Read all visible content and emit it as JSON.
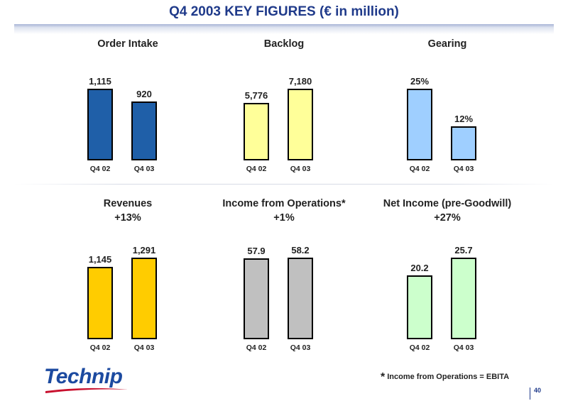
{
  "title": "Q4 2003 KEY FIGURES (€ in million)",
  "footnote": {
    "star": "*",
    "text": "Income from Operations = EBITA"
  },
  "logo_text": "Technip",
  "page_number": "40",
  "colors": {
    "title": "#1f3a8a",
    "order_intake": "#1f5fa8",
    "backlog": "#ffff99",
    "gearing": "#9fcfff",
    "revenues": "#ffcc00",
    "income_ops": "#c0c0c0",
    "net_income": "#ccffcc"
  },
  "chart_data": [
    {
      "type": "bar",
      "title": "Order Intake",
      "subtitle": "",
      "categories": [
        "Q4 02",
        "Q4 03"
      ],
      "values": [
        1115,
        920
      ],
      "labels": [
        "1,115",
        "920"
      ],
      "color": "#1f5fa8"
    },
    {
      "type": "bar",
      "title": "Backlog",
      "subtitle": "",
      "categories": [
        "Q4 02",
        "Q4 03"
      ],
      "values": [
        5776,
        7180
      ],
      "labels": [
        "5,776",
        "7,180"
      ],
      "color": "#ffff99"
    },
    {
      "type": "bar",
      "title": "Gearing",
      "subtitle": "",
      "categories": [
        "Q4 02",
        "Q4 03"
      ],
      "values": [
        25,
        12
      ],
      "labels": [
        "25%",
        "12%"
      ],
      "color": "#9fcfff"
    },
    {
      "type": "bar",
      "title": "Revenues",
      "subtitle": "+13%",
      "categories": [
        "Q4 02",
        "Q4 03"
      ],
      "values": [
        1145,
        1291
      ],
      "labels": [
        "1,145",
        "1,291"
      ],
      "color": "#ffcc00"
    },
    {
      "type": "bar",
      "title": "Income from Operations*",
      "subtitle": "+1%",
      "categories": [
        "Q4 02",
        "Q4 03"
      ],
      "values": [
        57.9,
        58.2
      ],
      "labels": [
        "57.9",
        "58.2"
      ],
      "color": "#c0c0c0"
    },
    {
      "type": "bar",
      "title": "Net Income (pre-Goodwill)",
      "subtitle": "+27%",
      "categories": [
        "Q4 02",
        "Q4 03"
      ],
      "values": [
        20.2,
        25.7
      ],
      "labels": [
        "20.2",
        "25.7"
      ],
      "color": "#ccffcc"
    }
  ]
}
